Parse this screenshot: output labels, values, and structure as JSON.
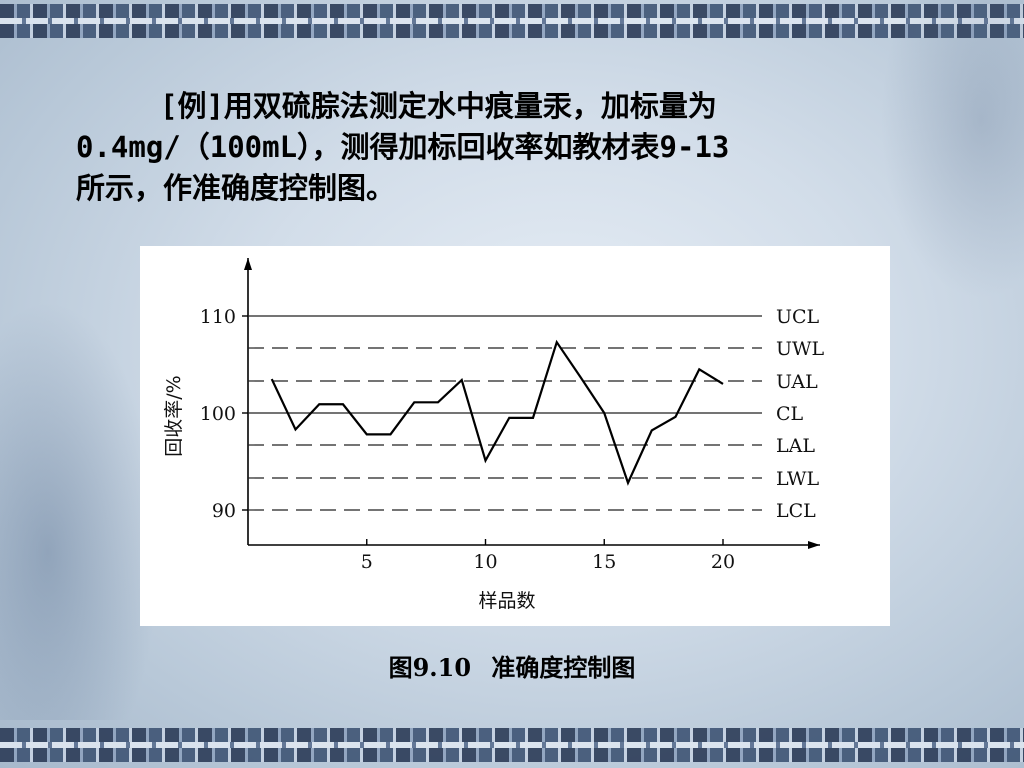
{
  "intro": {
    "line1": "[例]用双硫腙法测定水中痕量汞，加标量为",
    "line2": "0.4mg/（100mL），测得加标回收率如教材表9-13",
    "line3": "所示，作准确度控制图。"
  },
  "caption": {
    "number": "图9.10",
    "text": "准确度控制图"
  },
  "chart_data": {
    "type": "line",
    "xlabel": "样品数",
    "ylabel": "回收率/%",
    "x_ticks": [
      5,
      10,
      15,
      20
    ],
    "y_ticks": [
      90,
      100,
      110
    ],
    "xlim": [
      0,
      24
    ],
    "ylim": [
      85,
      117
    ],
    "x": [
      1,
      2,
      3,
      4,
      5,
      6,
      7,
      8,
      9,
      10,
      11,
      12,
      13,
      14,
      15,
      16,
      17,
      18,
      19,
      20
    ],
    "values": [
      103.5,
      98.3,
      100.9,
      100.9,
      97.8,
      97.8,
      101.1,
      101.1,
      103.4,
      95.1,
      99.5,
      99.5,
      107.3,
      103.7,
      100.0,
      92.8,
      98.2,
      99.6,
      104.5,
      103.0
    ],
    "control_lines": [
      {
        "label": "UCL",
        "value": 110.0,
        "style": "solid"
      },
      {
        "label": "UWL",
        "value": 106.7,
        "style": "dashed"
      },
      {
        "label": "UAL",
        "value": 103.3,
        "style": "dashed"
      },
      {
        "label": "CL",
        "value": 100.0,
        "style": "solid"
      },
      {
        "label": "LAL",
        "value": 96.7,
        "style": "dashed"
      },
      {
        "label": "LWL",
        "value": 93.3,
        "style": "dashed"
      },
      {
        "label": "LCL",
        "value": 90.0,
        "style": "dashed"
      }
    ],
    "grid": false,
    "legend": "right"
  }
}
